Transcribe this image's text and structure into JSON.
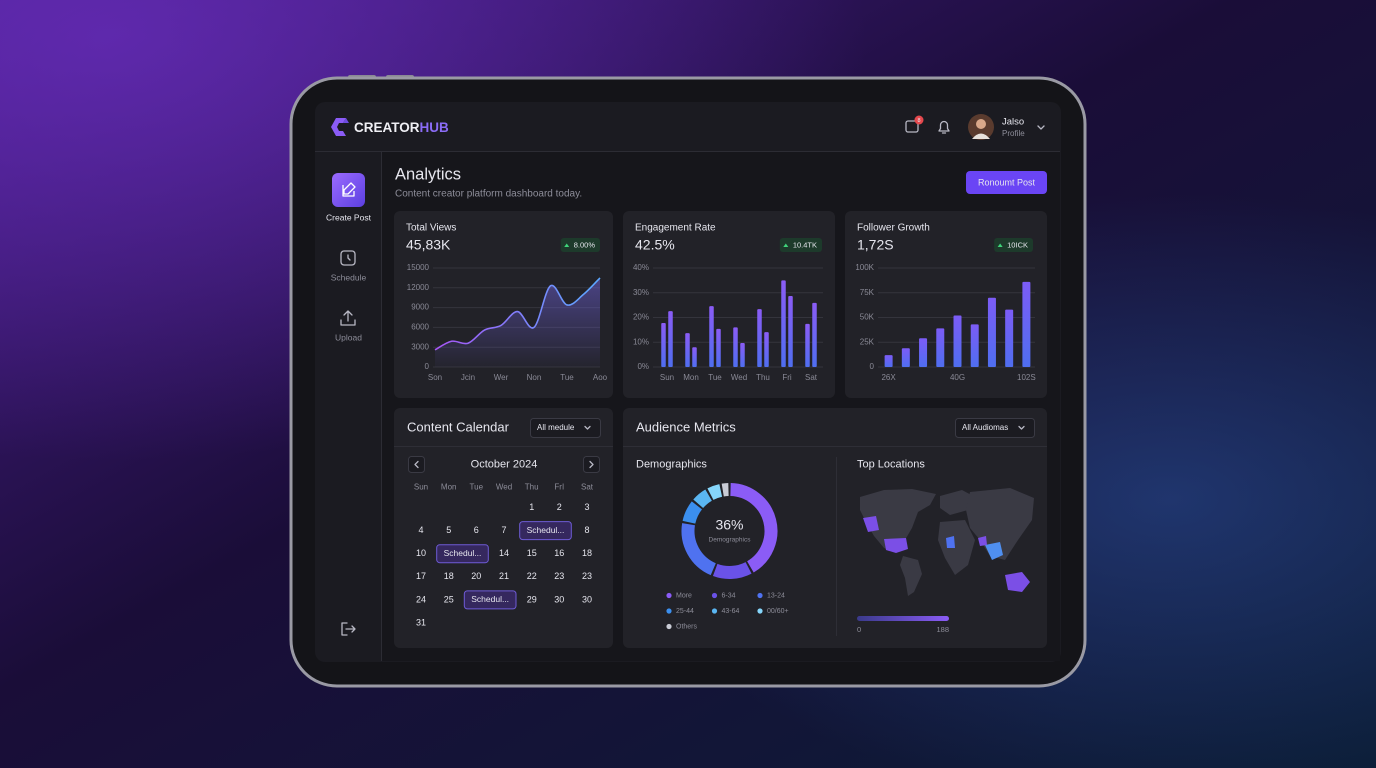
{
  "app": {
    "brand_a": "CREATOR",
    "brand_b": "HUB",
    "notification_count": "8",
    "user_name": "Jalso",
    "user_role": "Profile"
  },
  "sidebar": {
    "items": [
      "Create Post",
      "Schedule",
      "Upload"
    ]
  },
  "header": {
    "title": "Analytics",
    "subtitle": "Content creator platform dashboard today.",
    "button": "Ronoumt Post"
  },
  "cards": [
    {
      "title": "Total Views",
      "value": "45,83K",
      "change": "8.00%",
      "chart": {
        "type": "area",
        "color": "#7c6cf6",
        "x": [
          0,
          0.5,
          1,
          1.5,
          2,
          2.5,
          3,
          3.5,
          4,
          4.5,
          5
        ],
        "values": [
          2600,
          3900,
          3600,
          5600,
          6300,
          8400,
          6000,
          12300,
          9400,
          11000,
          13500
        ],
        "xlim": [
          0,
          5
        ],
        "xticks": [
          {
            "value": 0,
            "label": "Son"
          },
          {
            "value": 1,
            "label": "Jcin"
          },
          {
            "value": 2,
            "label": "Wer"
          },
          {
            "value": 3,
            "label": "Non"
          },
          {
            "value": 4,
            "label": "Tue"
          },
          {
            "value": 5,
            "label": "Aoo"
          }
        ],
        "ylim": [
          0,
          15000
        ],
        "yticks": [
          0,
          3000,
          6000,
          9000,
          12000,
          15000
        ],
        "grid": true
      }
    },
    {
      "title": "Engagement Rate",
      "value": "42.5%",
      "change": "10.4TK",
      "chart": {
        "type": "bar",
        "categories": [
          "Sun",
          "Mon",
          "Tue",
          "Wed",
          "Thu",
          "Fri",
          "Sat"
        ],
        "series": [
          {
            "color": "#8b5cf6",
            "values": [
              17.8,
              13.7,
              24.6,
              16,
              23.4,
              35,
              17.4
            ]
          },
          {
            "color": "#8b5cf6",
            "values": [
              22.6,
              8,
              15.4,
              9.7,
              14.1,
              28.7,
              25.9
            ]
          }
        ],
        "ylim": [
          0,
          40
        ],
        "yticks": [
          {
            "value": 0,
            "label": "0%"
          },
          {
            "value": 10,
            "label": "10%"
          },
          {
            "value": 20,
            "label": "20%"
          },
          {
            "value": 30,
            "label": "30%"
          },
          {
            "value": 40,
            "label": "40%"
          }
        ],
        "grid": true
      }
    },
    {
      "title": "Follower Growth",
      "value": "1,72S",
      "change": "10ICK",
      "chart": {
        "type": "bar",
        "color": "#7c5cf6",
        "categories": [
          "26X",
          null,
          null,
          null,
          "40G",
          null,
          null,
          null,
          "102S"
        ],
        "values": [
          12000,
          19000,
          29000,
          39000,
          52000,
          43000,
          70000,
          58000,
          86000
        ],
        "ylim": [
          0,
          100000
        ],
        "yticks": [
          0,
          {
            "value": 25000,
            "label": "25K"
          },
          {
            "value": 50000,
            "label": "50K"
          },
          {
            "value": 75000,
            "label": "75K"
          },
          {
            "value": 100000,
            "label": "100K"
          }
        ],
        "grid": true
      }
    }
  ],
  "calendar": {
    "title": "Content Calendar",
    "filter": "All medule",
    "month": "October 2024",
    "weekdays": [
      "Sun",
      "Mon",
      "Tue",
      "Wed",
      "Thu",
      "FrI",
      "Sat"
    ],
    "weeks": [
      [
        null,
        null,
        null,
        null,
        "1",
        "2",
        "3"
      ],
      [
        "4",
        "5",
        "6",
        "7",
        {
          "event": "Schedul..."
        },
        null,
        "8"
      ],
      [
        "10",
        {
          "event": "Schedul..."
        },
        null,
        "14",
        "15",
        "16",
        "18"
      ],
      [
        "17",
        "18",
        "20",
        "21",
        "22",
        "23",
        "23"
      ],
      [
        "24",
        "25",
        {
          "event": "Schedul..."
        },
        null,
        "29",
        "30",
        "30"
      ],
      [
        "31",
        null,
        null,
        null,
        null,
        null,
        null
      ]
    ]
  },
  "audience": {
    "title": "Audience Metrics",
    "filter": "All Audiomas",
    "demographics": {
      "title": "Demographics",
      "center_value": "36%",
      "center_label": "Demographics",
      "chart": {
        "type": "donut",
        "categories": [
          "More",
          "6-34",
          "13-24",
          "25-44",
          "43-64",
          "00/60+",
          "Others"
        ],
        "values": [
          42,
          14,
          22,
          8,
          6,
          5,
          3
        ],
        "colors": [
          "#8b5cf6",
          "#6a52e8",
          "#4f72f0",
          "#3b8fee",
          "#5ab6f2",
          "#86d6fb",
          "#c9ccd6"
        ]
      }
    },
    "locations": {
      "title": "Top Locations",
      "scale_min": "0",
      "scale_max": "188"
    }
  }
}
